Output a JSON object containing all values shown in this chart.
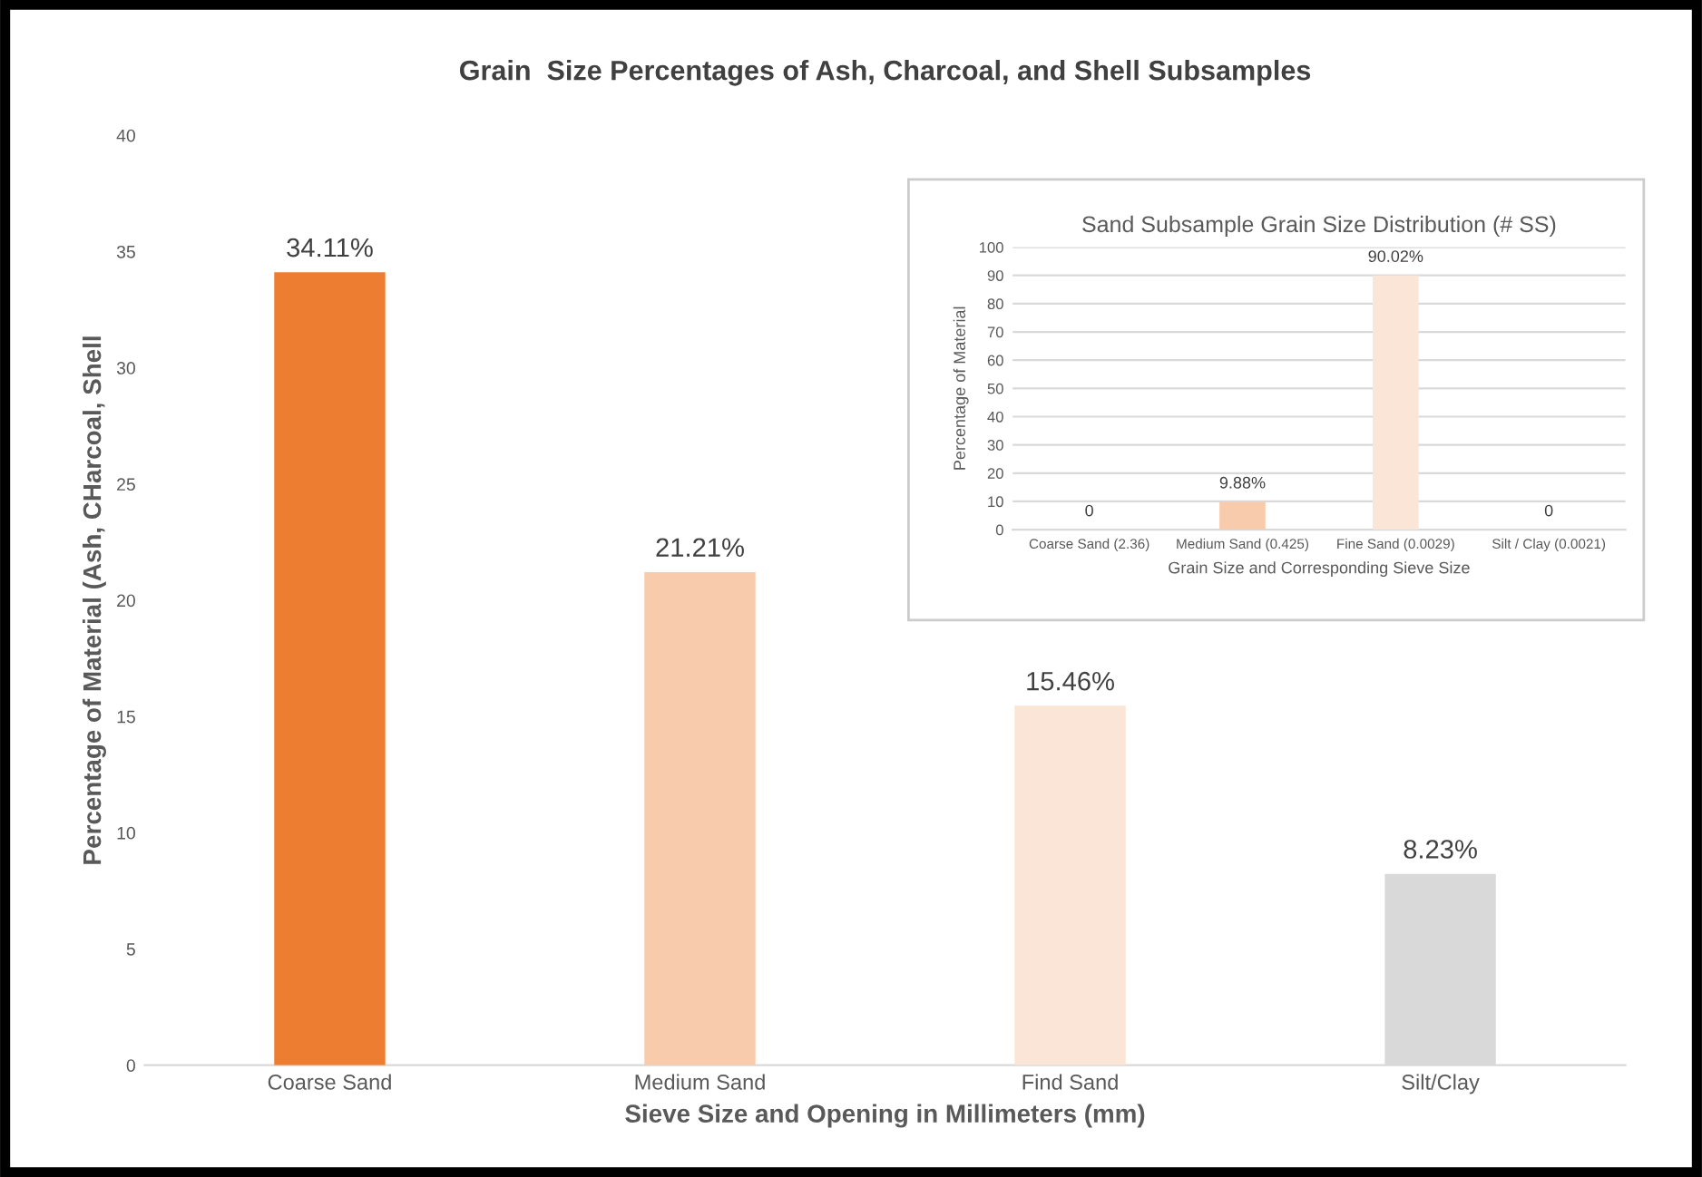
{
  "chart_data": [
    {
      "type": "bar",
      "title": "Grain  Size Percentages of Ash, Charcoal, and Shell Subsamples",
      "xlabel": "Sieve Size and Opening in Millimeters (mm)",
      "ylabel": "Percentage of Material (Ash, CHarcoal, Shell",
      "categories": [
        "Coarse Sand",
        "Medium Sand",
        "Find Sand",
        "Silt/Clay"
      ],
      "values": [
        34.11,
        21.21,
        15.46,
        8.23
      ],
      "colors": [
        "#ed7d31",
        "#f8cbad",
        "#fbe5d6",
        "#d9d9d9"
      ],
      "value_labels": [
        "34.11%",
        "21.21%",
        "15.46%",
        "8.23%"
      ],
      "ylim": [
        0,
        40
      ],
      "yticks": [
        0,
        5,
        10,
        15,
        20,
        25,
        30,
        35,
        40
      ],
      "grid": false
    },
    {
      "type": "bar",
      "title": "Sand Subsample Grain Size Distribution (# SS)",
      "xlabel": "Grain Size and Corresponding Sieve Size",
      "ylabel": "Percentage of Material",
      "categories": [
        "Coarse Sand (2.36)",
        "Medium Sand (0.425)",
        "Fine Sand (0.0029)",
        "Silt / Clay (0.0021)"
      ],
      "values": [
        0,
        9.88,
        90.02,
        0
      ],
      "colors": [
        "#ed7d31",
        "#f8cbad",
        "#fbe5d6",
        "#d9d9d9"
      ],
      "value_labels": [
        "0",
        "9.88%",
        "90.02%",
        "0"
      ],
      "ylim": [
        0,
        100
      ],
      "yticks": [
        0,
        10,
        20,
        30,
        40,
        50,
        60,
        70,
        80,
        90,
        100
      ],
      "grid": "y"
    }
  ]
}
